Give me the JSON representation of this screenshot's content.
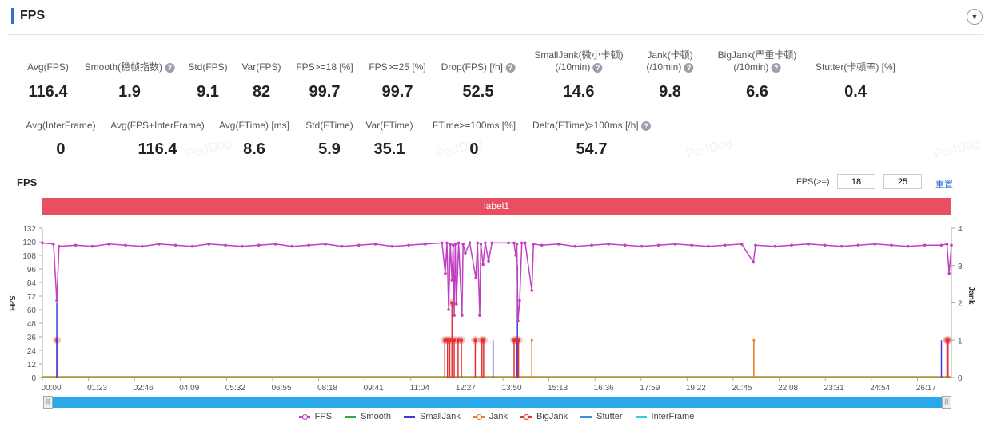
{
  "header": {
    "title": "FPS",
    "collapse_icon": "chevron-down-icon"
  },
  "stats_row1": [
    {
      "label": "Avg(FPS)",
      "value": "116.4",
      "help": false
    },
    {
      "label": "Smooth(稳帧指数)",
      "value": "1.9",
      "help": true
    },
    {
      "label": "Std(FPS)",
      "value": "9.1",
      "help": false
    },
    {
      "label": "Var(FPS)",
      "value": "82",
      "help": false
    },
    {
      "label": "FPS>=18 [%]",
      "value": "99.7",
      "help": false
    },
    {
      "label": "FPS>=25 [%]",
      "value": "99.7",
      "help": false
    },
    {
      "label": "Drop(FPS) [/h]",
      "value": "52.5",
      "help": true
    },
    {
      "label": "SmallJank(微小卡顿)",
      "label2": "(/10min)",
      "value": "14.6",
      "help": true
    },
    {
      "label": "Jank(卡顿)",
      "label2": "(/10min)",
      "value": "9.8",
      "help": true
    },
    {
      "label": "BigJank(严重卡顿)",
      "label2": "(/10min)",
      "value": "6.6",
      "help": true
    },
    {
      "label": "Stutter(卡顿率) [%]",
      "value": "0.4",
      "help": false
    }
  ],
  "stats_row2": [
    {
      "label": "Avg(InterFrame)",
      "value": "0",
      "help": false
    },
    {
      "label": "Avg(FPS+InterFrame)",
      "value": "116.4",
      "help": false
    },
    {
      "label": "Avg(FTime) [ms]",
      "value": "8.6",
      "help": false
    },
    {
      "label": "Std(FTime)",
      "value": "5.9",
      "help": false
    },
    {
      "label": "Var(FTime)",
      "value": "35.1",
      "help": false
    },
    {
      "label": "FTime>=100ms [%]",
      "value": "0",
      "help": false
    },
    {
      "label": "Delta(FTime)>100ms [/h]",
      "value": "54.7",
      "help": true
    }
  ],
  "watermark": "PerfDog",
  "chart_header": {
    "title": "FPS",
    "threshold_label": "FPS(>=)",
    "threshold1": "18",
    "threshold2": "25",
    "reset": "重置"
  },
  "band_label": "label1",
  "chart_data": {
    "type": "line",
    "ylabel": "FPS",
    "y2label": "Jank",
    "ylim": [
      0,
      132
    ],
    "yticks": [
      0,
      12,
      24,
      36,
      48,
      60,
      72,
      84,
      96,
      108,
      120,
      132
    ],
    "y2lim": [
      0,
      4
    ],
    "y2ticks": [
      0,
      1,
      2,
      3,
      4
    ],
    "xticks": [
      "00:00",
      "01:23",
      "02:46",
      "04:09",
      "05:32",
      "06:55",
      "08:18",
      "09:41",
      "11:04",
      "12:27",
      "13:50",
      "15:13",
      "16:36",
      "17:59",
      "19:22",
      "20:45",
      "22:08",
      "23:31",
      "24:54",
      "26:17"
    ],
    "xlim": [
      "00:00",
      "27:18"
    ],
    "grid": false,
    "legend": "bottom",
    "colors": {
      "FPS": "#c13fc1",
      "Smooth": "#2eaa4a",
      "SmallJank": "#3b3bdc",
      "Jank": "#f07a1c",
      "BigJank": "#e23232",
      "Stutter": "#3f8ee8",
      "InterFrame": "#2fd0d6"
    },
    "legend_items": [
      "FPS",
      "Smooth",
      "SmallJank",
      "Jank",
      "BigJank",
      "Stutter",
      "InterFrame"
    ],
    "fps": [
      [
        "00:00",
        119
      ],
      [
        "00:20",
        118
      ],
      [
        "00:26",
        68
      ],
      [
        "00:30",
        116
      ],
      [
        "01:00",
        117
      ],
      [
        "01:30",
        116
      ],
      [
        "02:00",
        118
      ],
      [
        "02:30",
        117
      ],
      [
        "03:00",
        116
      ],
      [
        "03:30",
        118
      ],
      [
        "04:00",
        117
      ],
      [
        "04:30",
        116
      ],
      [
        "05:00",
        118
      ],
      [
        "05:30",
        117
      ],
      [
        "06:00",
        116
      ],
      [
        "06:30",
        117
      ],
      [
        "07:00",
        118
      ],
      [
        "07:30",
        116
      ],
      [
        "08:00",
        117
      ],
      [
        "08:30",
        118
      ],
      [
        "09:00",
        116
      ],
      [
        "09:30",
        117
      ],
      [
        "10:00",
        118
      ],
      [
        "10:30",
        116
      ],
      [
        "11:00",
        117
      ],
      [
        "11:30",
        118
      ],
      [
        "12:00",
        119
      ],
      [
        "12:06",
        92
      ],
      [
        "12:09",
        119
      ],
      [
        "12:12",
        60
      ],
      [
        "12:15",
        118
      ],
      [
        "12:18",
        86
      ],
      [
        "12:20",
        117
      ],
      [
        "12:22",
        55
      ],
      [
        "12:24",
        118
      ],
      [
        "12:26",
        65
      ],
      [
        "12:30",
        119
      ],
      [
        "12:36",
        55
      ],
      [
        "12:38",
        118
      ],
      [
        "12:42",
        110
      ],
      [
        "12:50",
        119
      ],
      [
        "13:01",
        88
      ],
      [
        "13:04",
        119
      ],
      [
        "13:08",
        55
      ],
      [
        "13:10",
        118
      ],
      [
        "13:14",
        100
      ],
      [
        "13:18",
        119
      ],
      [
        "13:24",
        103
      ],
      [
        "13:30",
        119
      ],
      [
        "14:00",
        119
      ],
      [
        "14:10",
        119
      ],
      [
        "14:13",
        108
      ],
      [
        "14:15",
        118
      ],
      [
        "14:17",
        50
      ],
      [
        "14:20",
        68
      ],
      [
        "14:24",
        119
      ],
      [
        "14:30",
        119
      ],
      [
        "14:42",
        77
      ],
      [
        "14:45",
        118
      ],
      [
        "15:00",
        117
      ],
      [
        "15:30",
        118
      ],
      [
        "16:00",
        116
      ],
      [
        "16:30",
        117
      ],
      [
        "17:00",
        118
      ],
      [
        "17:30",
        117
      ],
      [
        "18:00",
        116
      ],
      [
        "18:30",
        117
      ],
      [
        "19:00",
        118
      ],
      [
        "19:30",
        117
      ],
      [
        "20:00",
        116
      ],
      [
        "20:30",
        117
      ],
      [
        "21:00",
        118
      ],
      [
        "21:21",
        102
      ],
      [
        "21:25",
        117
      ],
      [
        "22:00",
        116
      ],
      [
        "22:30",
        117
      ],
      [
        "23:00",
        118
      ],
      [
        "23:30",
        117
      ],
      [
        "24:00",
        116
      ],
      [
        "24:30",
        117
      ],
      [
        "25:00",
        118
      ],
      [
        "25:30",
        117
      ],
      [
        "26:00",
        116
      ],
      [
        "26:30",
        117
      ],
      [
        "27:00",
        117
      ],
      [
        "27:10",
        118
      ],
      [
        "27:14",
        92
      ],
      [
        "27:18",
        117
      ]
    ],
    "jank_events": [
      {
        "t": "00:26",
        "type": "BigJank",
        "value": 1
      },
      {
        "t": "00:26",
        "type": "SmallJank",
        "value": 2
      },
      {
        "t": "12:05",
        "type": "BigJank",
        "value": 1
      },
      {
        "t": "12:10",
        "type": "BigJank",
        "value": 1
      },
      {
        "t": "12:14",
        "type": "BigJank",
        "value": 1
      },
      {
        "t": "12:18",
        "type": "BigJank",
        "value": 2
      },
      {
        "t": "12:22",
        "type": "BigJank",
        "value": 1
      },
      {
        "t": "12:29",
        "type": "BigJank",
        "value": 1
      },
      {
        "t": "12:35",
        "type": "BigJank",
        "value": 1
      },
      {
        "t": "13:00",
        "type": "BigJank",
        "value": 1
      },
      {
        "t": "13:12",
        "type": "BigJank",
        "value": 1
      },
      {
        "t": "13:15",
        "type": "BigJank",
        "value": 1
      },
      {
        "t": "13:32",
        "type": "SmallJank",
        "value": 1
      },
      {
        "t": "14:10",
        "type": "BigJank",
        "value": 1
      },
      {
        "t": "14:14",
        "type": "BigJank",
        "value": 1
      },
      {
        "t": "14:16",
        "type": "SmallJank",
        "value": 3
      },
      {
        "t": "14:18",
        "type": "BigJank",
        "value": 1
      },
      {
        "t": "14:42",
        "type": "Jank",
        "value": 1
      },
      {
        "t": "21:22",
        "type": "Jank",
        "value": 1
      },
      {
        "t": "27:00",
        "type": "SmallJank",
        "value": 1
      },
      {
        "t": "27:10",
        "type": "BigJank",
        "value": 1
      },
      {
        "t": "27:12",
        "type": "BigJank",
        "value": 1
      }
    ]
  }
}
